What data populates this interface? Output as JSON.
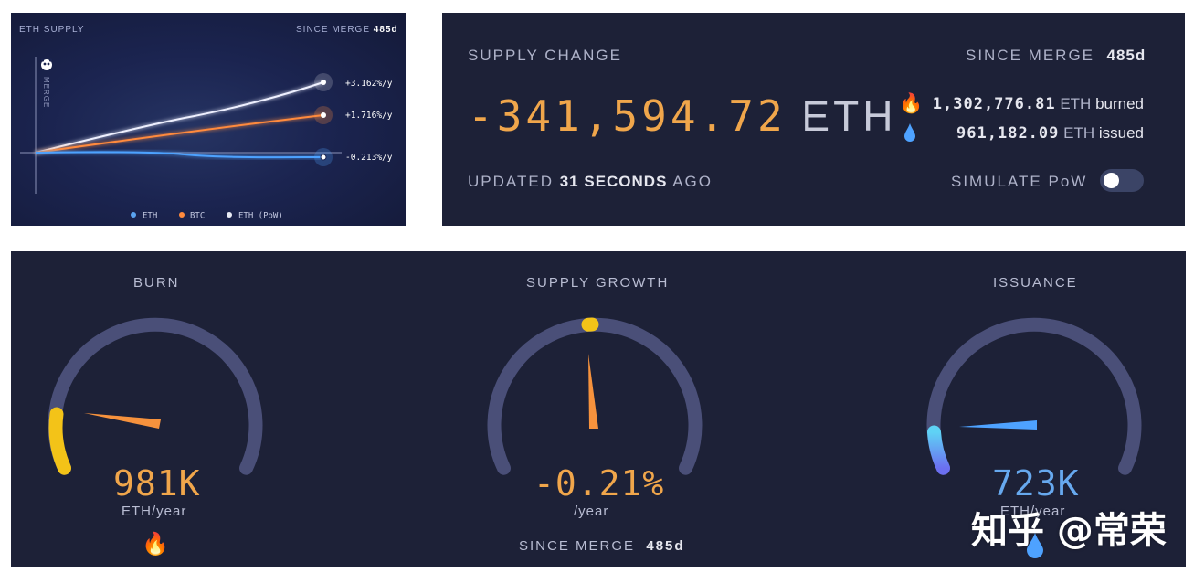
{
  "supply_chart": {
    "title": "ETH SUPPLY",
    "since_label": "SINCE MERGE",
    "since_value": "485d",
    "merge_label": "MERGE",
    "end_labels": {
      "eth_pow": "+3.162%/y",
      "btc": "+1.716%/y",
      "eth": "-0.213%/y"
    },
    "legend": [
      {
        "name": "ETH",
        "color": "#5aa3f0"
      },
      {
        "name": "BTC",
        "color": "#ff8a3d"
      },
      {
        "name": "ETH (PoW)",
        "color": "#e8eaf4"
      }
    ]
  },
  "supply_change": {
    "title": "SUPPLY CHANGE",
    "since_label": "SINCE MERGE",
    "since_value": "485d",
    "amount": "-341,594.72",
    "amount_unit": "ETH",
    "burned_value": "1,302,776.81",
    "burned_unit": "ETH",
    "burned_label": "burned",
    "issued_value": "961,182.09",
    "issued_unit": "ETH",
    "issued_label": "issued",
    "updated_prefix": "UPDATED",
    "updated_value": "31 SECONDS",
    "updated_suffix": "AGO",
    "simulate_label": "SIMULATE PoW",
    "simulate_on": false
  },
  "gauges": {
    "burn": {
      "title": "BURN",
      "value": "981K",
      "unit": "ETH/year"
    },
    "supply_growth": {
      "title": "SUPPLY GROWTH",
      "value": "-0.21%",
      "unit": "/year",
      "since_label": "SINCE MERGE",
      "since_value": "485d"
    },
    "issuance": {
      "title": "ISSUANCE",
      "value": "723K",
      "unit": "ETH/year"
    }
  },
  "watermark": "知乎 @常荣",
  "colors": {
    "orange": "#f0a64b",
    "blue": "#67a9ef",
    "yellow": "#f3c318",
    "track": "#4a4f78"
  }
}
